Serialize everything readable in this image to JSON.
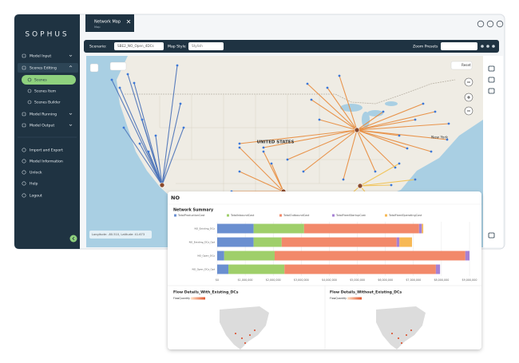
{
  "sidebar": {
    "logo": "SOPHUS",
    "menu": [
      "Model Input",
      "Scenes Editing",
      "Model Running",
      "Model Output"
    ],
    "submenu": [
      "Scenes",
      "Scenes Item",
      "Scenes Builder"
    ],
    "footer_menu": [
      "Import and Export",
      "Model Information",
      "Unlock",
      "Help",
      "Logout"
    ]
  },
  "tab": {
    "title": "Network Map",
    "subtitle": "Map"
  },
  "toolbar": {
    "scenario_label": "Scenario:",
    "scenario_value": "SBE2_NO_Open_4DCs",
    "map_style_label": "Map Style",
    "map_style_value": "Stylish",
    "zoom_label": "Zoom Presets"
  },
  "map": {
    "labels": [
      "UNITED STATES",
      "New York"
    ],
    "coordinates": "Longitude: -80.510, Latitude: 41.673",
    "reset": "Reset"
  },
  "panel": {
    "title": "NO",
    "chart_data": {
      "type": "bar",
      "orientation": "horizontal",
      "stacked": true,
      "title": "Network Summary",
      "categories": [
        "NO_Existing_DCs",
        "NO_Existing_DCs_Opt",
        "NO_Open_DCs",
        "NO_Open_DCs_Opt"
      ],
      "series": [
        {
          "name": "TotalProductionCost",
          "color": "#6a8fd0",
          "values": [
            1300000,
            1300000,
            250000,
            400000
          ]
        },
        {
          "name": "TotalInboundCost",
          "color": "#9fcf6a",
          "values": [
            1800000,
            1000000,
            1800000,
            2000000
          ]
        },
        {
          "name": "TotalOutboundCost",
          "color": "#f2896a",
          "values": [
            4100000,
            4100000,
            6800000,
            5400000
          ]
        },
        {
          "name": "TotalFixedStartupCost",
          "color": "#a681d4",
          "values": [
            100000,
            100000,
            150000,
            150000
          ]
        },
        {
          "name": "TotalFixedOperatingCost",
          "color": "#f7b955",
          "values": [
            50000,
            450000,
            0,
            0
          ]
        }
      ],
      "xlim": [
        0,
        9000000
      ],
      "xticks": [
        {
          "value": 0,
          "label": "$0"
        },
        {
          "value": 1000000,
          "label": "$1,000,000"
        },
        {
          "value": 2000000,
          "label": "$2,000,000"
        },
        {
          "value": 3000000,
          "label": "$3,000,000"
        },
        {
          "value": 4000000,
          "label": "$4,000,000"
        },
        {
          "value": 5000000,
          "label": "$5,000,000"
        },
        {
          "value": 6000000,
          "label": "$6,000,000"
        },
        {
          "value": 7000000,
          "label": "$7,000,000"
        },
        {
          "value": 8000000,
          "label": "$8,000,000"
        },
        {
          "value": 9000000,
          "label": "$9,000,000"
        }
      ],
      "grid": true,
      "legend": "top"
    },
    "flow_details": [
      "Flow Details_With_Existing_DCs",
      "Flow Details_Without_Existing_DCs"
    ],
    "flow_legend_label": "FlowQuantity"
  }
}
